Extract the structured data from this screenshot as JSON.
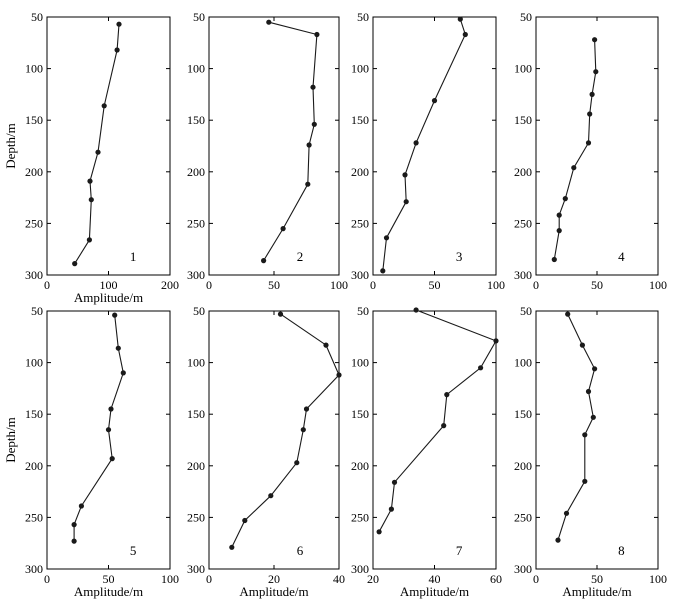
{
  "figure": {
    "axis_color": "#000000",
    "line_color": "#1a1a1a"
  },
  "chart_data": [
    {
      "type": "line",
      "label": "1",
      "xlabel": "Amplitude/m",
      "ylabel": "Depth/m",
      "xlim": [
        0,
        200
      ],
      "ylim": [
        50,
        300
      ],
      "xticks": [
        "0",
        "100",
        "200"
      ],
      "yticks": [
        "50",
        "100",
        "150",
        "200",
        "250",
        "300"
      ],
      "points": [
        [
          117,
          57
        ],
        [
          114,
          82
        ],
        [
          93,
          136
        ],
        [
          83,
          181
        ],
        [
          70,
          209
        ],
        [
          72,
          227
        ],
        [
          69,
          266
        ],
        [
          45,
          289
        ]
      ]
    },
    {
      "type": "line",
      "label": "2",
      "xlabel": "",
      "ylabel": "",
      "xlim": [
        0,
        100
      ],
      "ylim": [
        50,
        300
      ],
      "xticks": [
        "0",
        "50",
        "100"
      ],
      "yticks": [
        "50",
        "100",
        "150",
        "200",
        "250",
        "300"
      ],
      "points": [
        [
          46,
          55
        ],
        [
          83,
          67
        ],
        [
          80,
          118
        ],
        [
          81,
          154
        ],
        [
          77,
          174
        ],
        [
          76,
          212
        ],
        [
          57,
          255
        ],
        [
          42,
          286
        ]
      ]
    },
    {
      "type": "line",
      "label": "3",
      "xlabel": "",
      "ylabel": "",
      "xlim": [
        0,
        100
      ],
      "ylim": [
        50,
        300
      ],
      "xticks": [
        "0",
        "50",
        "100"
      ],
      "yticks": [
        "50",
        "100",
        "150",
        "200",
        "250",
        "300"
      ],
      "points": [
        [
          71,
          52
        ],
        [
          75,
          67
        ],
        [
          50,
          131
        ],
        [
          35,
          172
        ],
        [
          26,
          203
        ],
        [
          27,
          229
        ],
        [
          11,
          264
        ],
        [
          8,
          296
        ]
      ]
    },
    {
      "type": "line",
      "label": "4",
      "xlabel": "",
      "ylabel": "",
      "xlim": [
        0,
        100
      ],
      "ylim": [
        50,
        300
      ],
      "xticks": [
        "0",
        "50",
        "100"
      ],
      "yticks": [
        "50",
        "100",
        "150",
        "200",
        "250",
        "300"
      ],
      "points": [
        [
          48,
          72
        ],
        [
          49,
          103
        ],
        [
          46,
          125
        ],
        [
          44,
          144
        ],
        [
          43,
          172
        ],
        [
          31,
          196
        ],
        [
          24,
          226
        ],
        [
          19,
          242
        ],
        [
          19,
          257
        ],
        [
          15,
          285
        ]
      ]
    },
    {
      "type": "line",
      "label": "5",
      "xlabel": "Amplitude/m",
      "ylabel": "Depth/m",
      "xlim": [
        0,
        100
      ],
      "ylim": [
        50,
        300
      ],
      "xticks": [
        "0",
        "50",
        "100"
      ],
      "yticks": [
        "50",
        "100",
        "150",
        "200",
        "250",
        "300"
      ],
      "points": [
        [
          55,
          54
        ],
        [
          58,
          86
        ],
        [
          62,
          110
        ],
        [
          52,
          145
        ],
        [
          50,
          165
        ],
        [
          53,
          193
        ],
        [
          28,
          239
        ],
        [
          22,
          257
        ],
        [
          22,
          273
        ]
      ]
    },
    {
      "type": "line",
      "label": "6",
      "xlabel": "Amplitude/m",
      "ylabel": "",
      "xlim": [
        0,
        40
      ],
      "ylim": [
        50,
        300
      ],
      "xticks": [
        "0",
        "20",
        "40"
      ],
      "yticks": [
        "50",
        "100",
        "150",
        "200",
        "250",
        "300"
      ],
      "points": [
        [
          22,
          53
        ],
        [
          36,
          83
        ],
        [
          40,
          112
        ],
        [
          30,
          145
        ],
        [
          29,
          165
        ],
        [
          27,
          197
        ],
        [
          19,
          229
        ],
        [
          11,
          253
        ],
        [
          7,
          279
        ]
      ]
    },
    {
      "type": "line",
      "label": "7",
      "xlabel": "Amplitude/m",
      "ylabel": "",
      "xlim": [
        20,
        60
      ],
      "ylim": [
        50,
        300
      ],
      "xticks": [
        "20",
        "40",
        "60"
      ],
      "yticks": [
        "50",
        "100",
        "150",
        "200",
        "250",
        "300"
      ],
      "points": [
        [
          34,
          49
        ],
        [
          60,
          79
        ],
        [
          55,
          105
        ],
        [
          44,
          131
        ],
        [
          43,
          161
        ],
        [
          27,
          216
        ],
        [
          26,
          242
        ],
        [
          22,
          264
        ]
      ]
    },
    {
      "type": "line",
      "label": "8",
      "xlabel": "Amplitude/m",
      "ylabel": "",
      "xlim": [
        0,
        100
      ],
      "ylim": [
        50,
        300
      ],
      "xticks": [
        "0",
        "50",
        "100"
      ],
      "yticks": [
        "50",
        "100",
        "150",
        "200",
        "250",
        "300"
      ],
      "points": [
        [
          26,
          53
        ],
        [
          38,
          83
        ],
        [
          48,
          106
        ],
        [
          43,
          128
        ],
        [
          47,
          153
        ],
        [
          40,
          170
        ],
        [
          40,
          215
        ],
        [
          25,
          246
        ],
        [
          18,
          272
        ]
      ]
    }
  ]
}
